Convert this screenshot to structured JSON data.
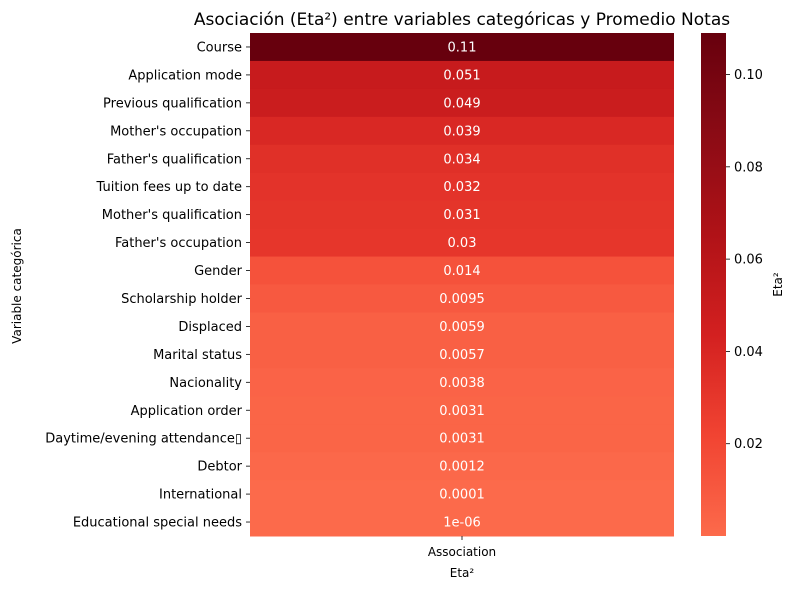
{
  "chart_data": {
    "type": "heatmap",
    "title": "Asociación (Eta²) entre variables categóricas y Promedio Notas",
    "xlabel": "Eta²",
    "ylabel": "Variable categórica",
    "columns": [
      "Association"
    ],
    "rows": [
      {
        "label": "Course",
        "value": 0.109,
        "annotation": "0.11"
      },
      {
        "label": "Application mode",
        "value": 0.051,
        "annotation": "0.051"
      },
      {
        "label": "Previous qualification",
        "value": 0.049,
        "annotation": "0.049"
      },
      {
        "label": "Mother's occupation",
        "value": 0.039,
        "annotation": "0.039"
      },
      {
        "label": "Father's qualification",
        "value": 0.034,
        "annotation": "0.034"
      },
      {
        "label": "Tuition fees up to date",
        "value": 0.032,
        "annotation": "0.032"
      },
      {
        "label": "Mother's qualification",
        "value": 0.031,
        "annotation": "0.031"
      },
      {
        "label": "Father's occupation",
        "value": 0.03,
        "annotation": "0.03"
      },
      {
        "label": "Gender",
        "value": 0.014,
        "annotation": "0.014"
      },
      {
        "label": "Scholarship holder",
        "value": 0.0095,
        "annotation": "0.0095"
      },
      {
        "label": "Displaced",
        "value": 0.0059,
        "annotation": "0.0059"
      },
      {
        "label": "Marital status",
        "value": 0.0057,
        "annotation": "0.0057"
      },
      {
        "label": "Nacionality",
        "value": 0.0038,
        "annotation": "0.0038"
      },
      {
        "label": "Application order",
        "value": 0.0031,
        "annotation": "0.0031"
      },
      {
        "label": "Daytime/evening attendance\t",
        "value": 0.0031,
        "annotation": "0.0031"
      },
      {
        "label": "Debtor",
        "value": 0.0012,
        "annotation": "0.0012"
      },
      {
        "label": "International",
        "value": 0.0001,
        "annotation": "0.0001"
      },
      {
        "label": "Educational special needs",
        "value": 1e-06,
        "annotation": "1e-06"
      }
    ],
    "colorbar": {
      "label": "Eta²",
      "ticks": [
        0.02,
        0.04,
        0.06,
        0.08,
        0.1
      ],
      "tick_labels": [
        "0.02",
        "0.04",
        "0.06",
        "0.08",
        "0.10"
      ],
      "range": [
        1e-06,
        0.109
      ],
      "colormap": "Reds (center portion)",
      "colors": [
        "#fc6a4b",
        "#f14432",
        "#d32020",
        "#b01217",
        "#8b0b15",
        "#67000d"
      ]
    },
    "grid": false,
    "legend": "colorbar-right"
  }
}
